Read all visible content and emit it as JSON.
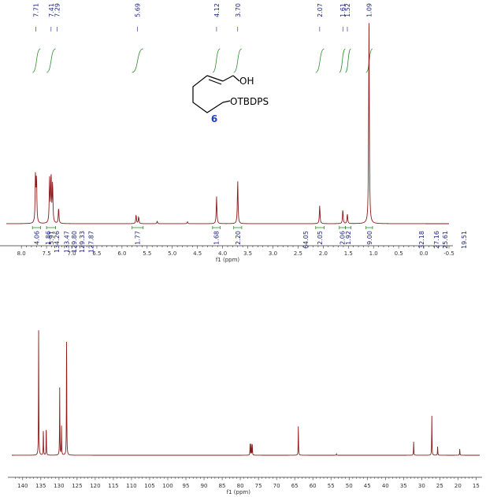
{
  "chart_data": [
    {
      "type": "line",
      "nucleus": "1H",
      "xlabel": "f1 (ppm)",
      "xlim": [
        8.3,
        -0.5
      ],
      "x_ticks": [
        "8.0",
        "7.5",
        "7.0",
        "6.5",
        "6.0",
        "5.5",
        "5.0",
        "4.5",
        "4.0",
        "3.5",
        "3.0",
        "2.5",
        "2.0",
        "1.5",
        "1.0",
        "0.5",
        "0.0",
        "-0.5"
      ],
      "peak_labels": [
        {
          "ppm": 7.71,
          "text": "7.71"
        },
        {
          "ppm": 7.41,
          "text": "7.41"
        },
        {
          "ppm": 7.29,
          "text": "7.29"
        },
        {
          "ppm": 5.69,
          "text": "5.69"
        },
        {
          "ppm": 4.12,
          "text": "4.12"
        },
        {
          "ppm": 3.7,
          "text": "3.70"
        },
        {
          "ppm": 2.07,
          "text": "2.07"
        },
        {
          "ppm": 1.61,
          "text": "1.61"
        },
        {
          "ppm": 1.52,
          "text": "1.52"
        },
        {
          "ppm": 1.09,
          "text": "1.09"
        }
      ],
      "peaks": [
        {
          "ppm": 7.72,
          "height": 0.24
        },
        {
          "ppm": 7.7,
          "height": 0.22
        },
        {
          "ppm": 7.44,
          "height": 0.22
        },
        {
          "ppm": 7.41,
          "height": 0.24
        },
        {
          "ppm": 7.38,
          "height": 0.2
        },
        {
          "ppm": 7.26,
          "height": 0.08
        },
        {
          "ppm": 5.72,
          "height": 0.045
        },
        {
          "ppm": 5.67,
          "height": 0.035
        },
        {
          "ppm": 5.3,
          "height": 0.012
        },
        {
          "ppm": 4.7,
          "height": 0.01
        },
        {
          "ppm": 4.12,
          "height": 0.135
        },
        {
          "ppm": 3.7,
          "height": 0.215
        },
        {
          "ppm": 2.07,
          "height": 0.09
        },
        {
          "ppm": 1.61,
          "height": 0.07
        },
        {
          "ppm": 1.52,
          "height": 0.05
        },
        {
          "ppm": 1.09,
          "height": 1.0
        }
      ],
      "integrals": [
        {
          "from": 7.78,
          "to": 7.62,
          "value": "4.06"
        },
        {
          "from": 7.5,
          "to": 7.32,
          "value": "5.91"
        },
        {
          "from": 5.8,
          "to": 5.58,
          "value": "1.77"
        },
        {
          "from": 4.2,
          "to": 4.05,
          "value": "1.68"
        },
        {
          "from": 3.78,
          "to": 3.62,
          "value": "2.20"
        },
        {
          "from": 2.15,
          "to": 1.98,
          "value": "2.05"
        },
        {
          "from": 1.68,
          "to": 1.56,
          "value": "2.06"
        },
        {
          "from": 1.56,
          "to": 1.45,
          "value": "1.92"
        },
        {
          "from": 1.15,
          "to": 1.02,
          "value": "9.00"
        }
      ],
      "overlay_13c_labels": [
        {
          "text": "1.86",
          "ppm": 7.47
        },
        {
          "text": "134.26",
          "ppm": 7.3
        },
        {
          "text": "133.47",
          "ppm": 7.1
        },
        {
          "text": "129.80",
          "ppm": 6.95
        },
        {
          "text": "129.33",
          "ppm": 6.8
        },
        {
          "text": "127.87",
          "ppm": 6.62
        },
        {
          "text": "64.05",
          "ppm": 2.35
        },
        {
          "text": "32.18",
          "ppm": 0.05
        },
        {
          "text": "27.16",
          "ppm": -0.25
        },
        {
          "text": "25.61",
          "ppm": -0.42
        },
        {
          "text": "19.51",
          "ppm": -0.8
        }
      ]
    },
    {
      "type": "line",
      "nucleus": "13C",
      "xlabel": "f1 (ppm)",
      "xlim": [
        143,
        14
      ],
      "x_ticks": [
        "140",
        "135",
        "130",
        "125",
        "120",
        "115",
        "110",
        "105",
        "100",
        "95",
        "90",
        "85",
        "80",
        "75",
        "70",
        "65",
        "60",
        "55",
        "50",
        "45",
        "40",
        "35",
        "30",
        "25",
        "20",
        "15"
      ],
      "peaks": [
        {
          "ppm": 135.6,
          "height": 1.0
        },
        {
          "ppm": 134.3,
          "height": 0.21
        },
        {
          "ppm": 133.5,
          "height": 0.24
        },
        {
          "ppm": 129.8,
          "height": 0.53
        },
        {
          "ppm": 129.3,
          "height": 0.23
        },
        {
          "ppm": 127.9,
          "height": 0.99
        },
        {
          "ppm": 77.3,
          "height": 0.09
        },
        {
          "ppm": 77.0,
          "height": 0.09
        },
        {
          "ppm": 76.7,
          "height": 0.09
        },
        {
          "ppm": 64.0,
          "height": 0.24
        },
        {
          "ppm": 53.5,
          "height": 0.01
        },
        {
          "ppm": 32.2,
          "height": 0.11
        },
        {
          "ppm": 27.2,
          "height": 0.31
        },
        {
          "ppm": 25.6,
          "height": 0.07
        },
        {
          "ppm": 19.5,
          "height": 0.05
        }
      ]
    }
  ],
  "structure": {
    "oh_label": "OH",
    "otbdps_label": "OTBDPS",
    "compound_number": "6"
  },
  "colors": {
    "spectrum": "#8b1a1a",
    "integral": "#2e8b2e",
    "label": "#1a237e",
    "compound": "#1f3fbf",
    "axis": "#333333"
  }
}
